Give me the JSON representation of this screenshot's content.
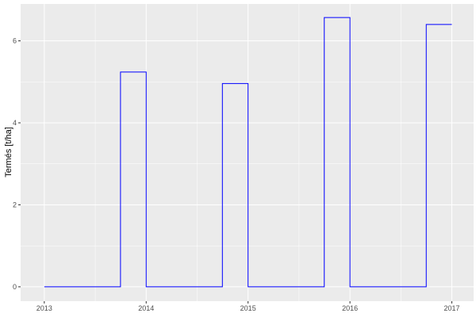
{
  "chart_data": {
    "type": "line",
    "style": "step",
    "title": "",
    "xlabel": "",
    "ylabel": "Termés [t/ha]",
    "xlim": [
      "2012-10-08",
      "2017-03-20"
    ],
    "ylim": [
      -0.35,
      6.9
    ],
    "x_ticks": [
      "2013",
      "2014",
      "2015",
      "2016",
      "2017"
    ],
    "y_ticks": [
      "0",
      "2",
      "4",
      "6"
    ],
    "grid": true,
    "line_color": "#0000ff",
    "panel_color": "#ebebeb",
    "series": [
      {
        "x": [
          "2013-01-01",
          "2013-10-01",
          "2014-01-01",
          "2014-10-01",
          "2015-01-01",
          "2015-10-01",
          "2016-01-01",
          "2016-10-01",
          "2017-01-01"
        ],
        "y": [
          0,
          5.24,
          0,
          4.96,
          0,
          6.57,
          0,
          6.4,
          6.4
        ]
      }
    ]
  }
}
